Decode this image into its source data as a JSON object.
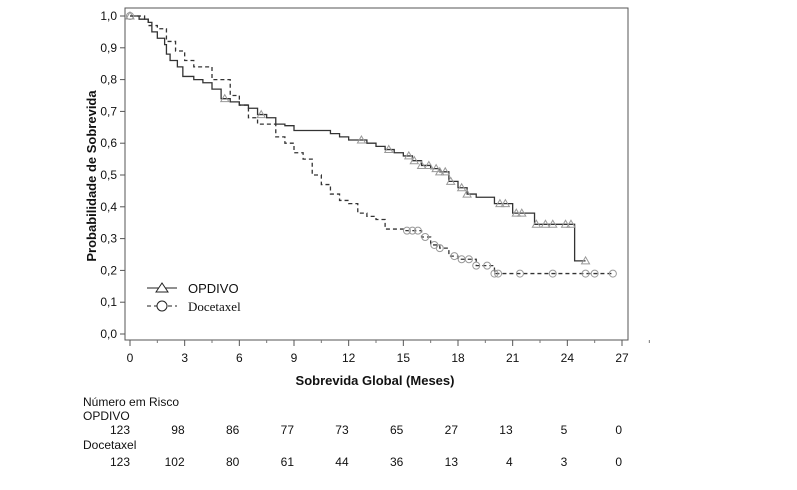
{
  "chart_data": {
    "type": "line",
    "subtype": "kaplan-meier",
    "xlabel": "Sobrevida Global (Meses)",
    "ylabel": "Probabilidade de Sobrevida",
    "xlim": [
      0,
      27
    ],
    "ylim": [
      0,
      1
    ],
    "xticks": [
      "0",
      "3",
      "6",
      "9",
      "12",
      "15",
      "18",
      "21",
      "24",
      "27"
    ],
    "yticks": [
      "0,0",
      "0,1",
      "0,2",
      "0,3",
      "0,4",
      "0,5",
      "0,6",
      "0,7",
      "0,8",
      "0,9",
      "1,0"
    ],
    "legend_position": "bottom-left",
    "series": [
      {
        "name": "OPDIVO",
        "style": "solid",
        "marker": "triangle",
        "x": [
          0,
          0.5,
          1,
          1.2,
          1.5,
          1.9,
          2,
          2.2,
          2.6,
          2.9,
          3.5,
          4,
          4.5,
          5,
          5.5,
          6,
          6.5,
          7,
          7.5,
          8,
          8.5,
          9,
          10,
          11,
          11.5,
          12,
          13,
          13.5,
          14,
          14.5,
          15,
          15.5,
          16,
          16.5,
          17,
          17.5,
          18,
          18.5,
          19,
          20,
          21,
          22.2,
          24.4,
          25
        ],
        "y": [
          1,
          0.99,
          0.98,
          0.95,
          0.93,
          0.91,
          0.88,
          0.86,
          0.84,
          0.81,
          0.8,
          0.79,
          0.77,
          0.74,
          0.73,
          0.72,
          0.71,
          0.69,
          0.68,
          0.66,
          0.655,
          0.64,
          0.64,
          0.63,
          0.62,
          0.61,
          0.6,
          0.59,
          0.58,
          0.57,
          0.56,
          0.545,
          0.53,
          0.52,
          0.51,
          0.48,
          0.46,
          0.44,
          0.43,
          0.41,
          0.38,
          0.345,
          0.23,
          0.23
        ],
        "censored_x": [
          0,
          5.2,
          7.2,
          12.7,
          14.2,
          15.3,
          15.6,
          16,
          16.4,
          16.8,
          17,
          17.3,
          17.6,
          18.2,
          18.5,
          20.3,
          20.6,
          21.2,
          21.5,
          22.3,
          22.8,
          23.2,
          23.9,
          24.2,
          25
        ]
      },
      {
        "name": "Docetaxel",
        "style": "dashed",
        "marker": "circle",
        "x": [
          0,
          0.8,
          1,
          1.5,
          2,
          2.5,
          3,
          3.5,
          4.5,
          5.5,
          6,
          6.5,
          7,
          8,
          8.5,
          9,
          9.5,
          10,
          10.5,
          11,
          11.5,
          12,
          12.5,
          13,
          13.5,
          14,
          15,
          16,
          16.5,
          17,
          17.5,
          18,
          19,
          19.5,
          20,
          26.5
        ],
        "y": [
          1,
          0.99,
          0.97,
          0.96,
          0.92,
          0.89,
          0.86,
          0.84,
          0.8,
          0.75,
          0.72,
          0.68,
          0.66,
          0.62,
          0.6,
          0.57,
          0.55,
          0.5,
          0.47,
          0.44,
          0.42,
          0.41,
          0.38,
          0.37,
          0.36,
          0.33,
          0.325,
          0.305,
          0.28,
          0.27,
          0.245,
          0.235,
          0.215,
          0.215,
          0.19,
          0.19
        ],
        "censored_x": [
          0,
          15.2,
          15.5,
          15.8,
          16.2,
          16.7,
          17,
          17.8,
          18.2,
          18.6,
          19,
          19.6,
          20,
          20.2,
          21.4,
          23.2,
          25,
          25.5,
          26.5
        ]
      }
    ],
    "risk_table": {
      "title": "Número em Risco",
      "rows": [
        {
          "name": "OPDIVO",
          "values": [
            "123",
            "98",
            "86",
            "77",
            "73",
            "65",
            "27",
            "13",
            "5",
            "0"
          ]
        },
        {
          "name": "Docetaxel",
          "values": [
            "123",
            "102",
            "80",
            "61",
            "44",
            "36",
            "13",
            "4",
            "3",
            "0"
          ]
        }
      ]
    }
  }
}
